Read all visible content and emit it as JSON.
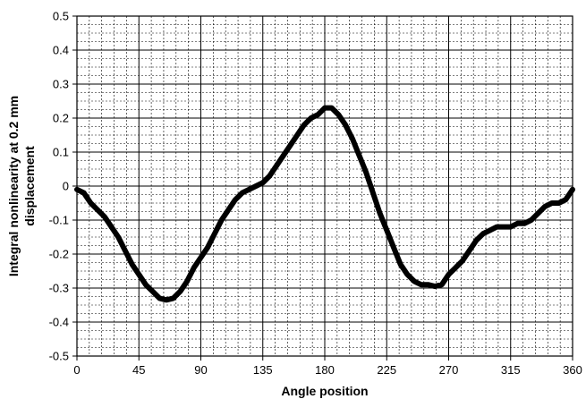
{
  "chart_data": {
    "type": "line",
    "title": "",
    "xlabel": "Angle position",
    "ylabel_line1": "Integral nonlinearity at 0.2 mm",
    "ylabel_line2": "displacement",
    "xlim": [
      0,
      360
    ],
    "ylim": [
      -0.5,
      0.5
    ],
    "x_ticks": [
      0,
      45,
      90,
      135,
      180,
      225,
      270,
      315,
      360
    ],
    "x_tick_labels": [
      "0",
      "45",
      "90",
      "135",
      "180",
      "225",
      "270",
      "315",
      "360"
    ],
    "y_ticks": [
      -0.5,
      -0.4,
      -0.3,
      -0.2,
      -0.1,
      0,
      0.1,
      0.2,
      0.3,
      0.4,
      0.5
    ],
    "y_tick_labels": [
      "-0.5",
      "-0.4",
      "-0.3",
      "-0.2",
      "-0.1",
      "0",
      "0.1",
      "0.2",
      "0.3",
      "0.4",
      "0.5"
    ],
    "grid": true,
    "line_color": "#000000",
    "series": [
      {
        "x": [
          0,
          5,
          10,
          15,
          20,
          25,
          30,
          35,
          40,
          45,
          50,
          55,
          60,
          65,
          70,
          75,
          80,
          85,
          90,
          95,
          100,
          105,
          110,
          115,
          120,
          125,
          130,
          135,
          140,
          145,
          150,
          155,
          160,
          165,
          170,
          175,
          180,
          185,
          190,
          195,
          200,
          205,
          210,
          215,
          220,
          225,
          230,
          235,
          240,
          245,
          250,
          255,
          260,
          265,
          270,
          275,
          280,
          285,
          290,
          295,
          300,
          305,
          310,
          315,
          320,
          325,
          330,
          335,
          340,
          345,
          350,
          355,
          360
        ],
        "y": [
          -0.01,
          -0.02,
          -0.05,
          -0.07,
          -0.09,
          -0.12,
          -0.15,
          -0.19,
          -0.23,
          -0.26,
          -0.29,
          -0.31,
          -0.33,
          -0.335,
          -0.33,
          -0.31,
          -0.28,
          -0.24,
          -0.21,
          -0.18,
          -0.14,
          -0.1,
          -0.07,
          -0.04,
          -0.02,
          -0.01,
          0.0,
          0.01,
          0.03,
          0.06,
          0.09,
          0.12,
          0.15,
          0.18,
          0.2,
          0.21,
          0.23,
          0.23,
          0.21,
          0.18,
          0.14,
          0.09,
          0.04,
          -0.02,
          -0.08,
          -0.13,
          -0.18,
          -0.23,
          -0.26,
          -0.28,
          -0.29,
          -0.29,
          -0.295,
          -0.29,
          -0.26,
          -0.24,
          -0.22,
          -0.19,
          -0.16,
          -0.14,
          -0.13,
          -0.12,
          -0.12,
          -0.12,
          -0.11,
          -0.11,
          -0.1,
          -0.08,
          -0.06,
          -0.05,
          -0.05,
          -0.04,
          -0.01
        ]
      }
    ]
  }
}
